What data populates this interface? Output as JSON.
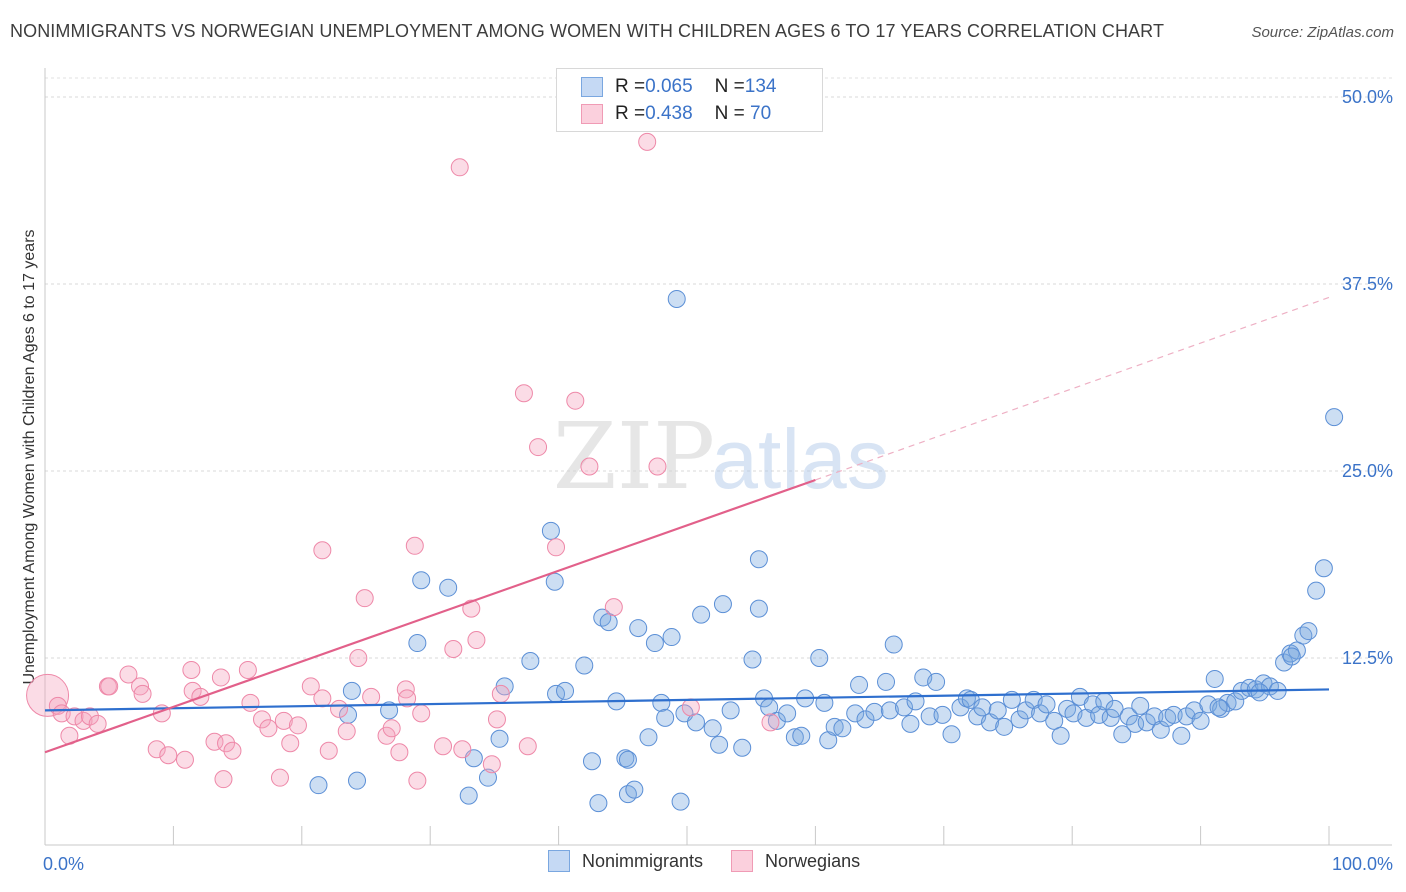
{
  "title": "NONIMMIGRANTS VS NORWEGIAN UNEMPLOYMENT AMONG WOMEN WITH CHILDREN AGES 6 TO 17 YEARS CORRELATION CHART",
  "source": "Source: ZipAtlas.com",
  "watermark": {
    "zip": "ZIP",
    "atlas": "atlas"
  },
  "legend_top": [
    {
      "r_label": "R = ",
      "r_value": "0.065",
      "n_label": "N = ",
      "n_value": "134",
      "color": "#7aa7e0"
    },
    {
      "r_label": "R = ",
      "r_value": "0.438",
      "n_label": "N = ",
      "n_value": " 70",
      "color": "#f09bb5"
    }
  ],
  "legend_bottom": [
    "Nonimmigrants",
    "Norwegians"
  ],
  "chart_data": {
    "type": "scatter",
    "title": "NONIMMIGRANTS VS NORWEGIAN UNEMPLOYMENT AMONG WOMEN WITH CHILDREN AGES 6 TO 17 YEARS CORRELATION CHART",
    "xlabel": "",
    "ylabel": "Unemployment Among Women with Children Ages 6 to 17 years",
    "xlim": [
      0,
      100
    ],
    "ylim": [
      0,
      50
    ],
    "x_tick_labels": [
      "0.0%",
      "100.0%"
    ],
    "y_ticks": [
      12.5,
      25.0,
      37.5,
      50.0
    ],
    "y_tick_labels": [
      "12.5%",
      "25.0%",
      "37.5%",
      "50.0%"
    ],
    "grid": "horizontal dashed",
    "legend_position": "top-center and bottom",
    "series": [
      {
        "name": "Nonimmigrants",
        "color": "#7aa7e0",
        "stroke": "#5b8fd6",
        "trend": {
          "x": [
            0,
            100
          ],
          "y": [
            9.0,
            10.4
          ],
          "color": "#2e6fce"
        },
        "points": [
          [
            21.3,
            4.0
          ],
          [
            23.6,
            8.7
          ],
          [
            24.3,
            4.3
          ],
          [
            23.9,
            10.3
          ],
          [
            26.8,
            9.0
          ],
          [
            29.0,
            13.5
          ],
          [
            29.3,
            17.7
          ],
          [
            31.4,
            17.2
          ],
          [
            33.0,
            3.3
          ],
          [
            33.4,
            5.8
          ],
          [
            34.5,
            4.5
          ],
          [
            35.4,
            7.1
          ],
          [
            35.8,
            10.6
          ],
          [
            37.8,
            12.3
          ],
          [
            39.4,
            21.0
          ],
          [
            39.7,
            17.6
          ],
          [
            39.8,
            10.1
          ],
          [
            40.5,
            10.3
          ],
          [
            42.0,
            12.0
          ],
          [
            42.6,
            5.6
          ],
          [
            43.1,
            2.8
          ],
          [
            43.4,
            15.2
          ],
          [
            43.9,
            14.9
          ],
          [
            44.5,
            9.6
          ],
          [
            45.2,
            5.8
          ],
          [
            45.4,
            5.7
          ],
          [
            45.4,
            3.4
          ],
          [
            45.9,
            3.7
          ],
          [
            46.2,
            14.5
          ],
          [
            47.0,
            7.2
          ],
          [
            47.5,
            13.5
          ],
          [
            48.0,
            9.5
          ],
          [
            48.3,
            8.5
          ],
          [
            48.8,
            13.9
          ],
          [
            49.2,
            36.5
          ],
          [
            49.5,
            2.9
          ],
          [
            49.8,
            8.8
          ],
          [
            50.7,
            8.2
          ],
          [
            51.1,
            15.4
          ],
          [
            52.0,
            7.8
          ],
          [
            52.5,
            6.7
          ],
          [
            52.8,
            16.1
          ],
          [
            53.4,
            9.0
          ],
          [
            54.3,
            6.5
          ],
          [
            55.1,
            12.4
          ],
          [
            55.6,
            15.8
          ],
          [
            55.6,
            19.1
          ],
          [
            56.0,
            9.8
          ],
          [
            56.4,
            9.2
          ],
          [
            57.0,
            8.3
          ],
          [
            57.8,
            8.8
          ],
          [
            58.4,
            7.2
          ],
          [
            58.9,
            7.3
          ],
          [
            59.2,
            9.8
          ],
          [
            60.3,
            12.5
          ],
          [
            60.7,
            9.5
          ],
          [
            61.0,
            7.0
          ],
          [
            61.5,
            7.9
          ],
          [
            62.1,
            7.8
          ],
          [
            63.1,
            8.8
          ],
          [
            63.4,
            10.7
          ],
          [
            63.9,
            8.4
          ],
          [
            64.6,
            8.9
          ],
          [
            65.5,
            10.9
          ],
          [
            65.8,
            9.0
          ],
          [
            66.1,
            13.4
          ],
          [
            66.9,
            9.2
          ],
          [
            67.4,
            8.1
          ],
          [
            67.8,
            9.6
          ],
          [
            68.4,
            11.2
          ],
          [
            68.9,
            8.6
          ],
          [
            69.4,
            10.9
          ],
          [
            69.9,
            8.7
          ],
          [
            70.6,
            7.4
          ],
          [
            71.3,
            9.2
          ],
          [
            71.8,
            9.8
          ],
          [
            72.1,
            9.7
          ],
          [
            72.6,
            8.6
          ],
          [
            73.0,
            9.2
          ],
          [
            73.6,
            8.2
          ],
          [
            74.2,
            9.0
          ],
          [
            74.7,
            7.9
          ],
          [
            75.3,
            9.7
          ],
          [
            75.9,
            8.4
          ],
          [
            76.4,
            9.0
          ],
          [
            77.0,
            9.7
          ],
          [
            77.5,
            8.8
          ],
          [
            78.0,
            9.4
          ],
          [
            78.6,
            8.3
          ],
          [
            79.1,
            7.3
          ],
          [
            79.6,
            9.1
          ],
          [
            80.1,
            8.8
          ],
          [
            80.6,
            9.9
          ],
          [
            81.1,
            8.5
          ],
          [
            81.6,
            9.4
          ],
          [
            82.1,
            8.7
          ],
          [
            82.5,
            9.6
          ],
          [
            83.0,
            8.5
          ],
          [
            83.3,
            9.1
          ],
          [
            83.9,
            7.4
          ],
          [
            84.4,
            8.6
          ],
          [
            84.9,
            8.1
          ],
          [
            85.3,
            9.3
          ],
          [
            85.8,
            8.2
          ],
          [
            86.4,
            8.6
          ],
          [
            86.9,
            7.7
          ],
          [
            87.4,
            8.5
          ],
          [
            87.9,
            8.7
          ],
          [
            88.5,
            7.3
          ],
          [
            88.9,
            8.6
          ],
          [
            89.5,
            9.0
          ],
          [
            90.0,
            8.3
          ],
          [
            90.6,
            9.4
          ],
          [
            91.1,
            11.1
          ],
          [
            91.6,
            9.1
          ],
          [
            92.1,
            9.5
          ],
          [
            92.7,
            9.6
          ],
          [
            93.2,
            10.3
          ],
          [
            93.8,
            10.5
          ],
          [
            94.3,
            10.4
          ],
          [
            94.9,
            10.8
          ],
          [
            95.4,
            10.6
          ],
          [
            96.0,
            10.3
          ],
          [
            96.5,
            12.2
          ],
          [
            97.0,
            12.8
          ],
          [
            97.5,
            13.0
          ],
          [
            98.0,
            14.0
          ],
          [
            98.4,
            14.3
          ],
          [
            99.0,
            17.0
          ],
          [
            99.6,
            18.5
          ],
          [
            100.4,
            28.6
          ],
          [
            97.1,
            12.6
          ],
          [
            94.6,
            10.2
          ],
          [
            91.4,
            9.2
          ]
        ]
      },
      {
        "name": "Norwegians",
        "color": "#f4a3bd",
        "stroke": "#ee88a8",
        "trend": {
          "x": [
            0,
            60
          ],
          "y": [
            6.2,
            24.4
          ],
          "color": "#e2608a"
        },
        "trend_dashed": {
          "x": [
            60,
            100
          ],
          "y": [
            24.4,
            36.6
          ]
        },
        "points": [
          [
            0.2,
            10.0
          ],
          [
            1.0,
            9.3
          ],
          [
            1.3,
            8.8
          ],
          [
            1.9,
            7.3
          ],
          [
            2.3,
            8.6
          ],
          [
            3.0,
            8.3
          ],
          [
            3.5,
            8.6
          ],
          [
            4.1,
            8.1
          ],
          [
            4.9,
            10.6
          ],
          [
            5.0,
            10.6
          ],
          [
            6.5,
            11.4
          ],
          [
            7.4,
            10.6
          ],
          [
            7.6,
            10.1
          ],
          [
            8.7,
            6.4
          ],
          [
            9.1,
            8.8
          ],
          [
            9.6,
            6.0
          ],
          [
            10.9,
            5.7
          ],
          [
            11.4,
            11.7
          ],
          [
            11.5,
            10.3
          ],
          [
            12.1,
            9.9
          ],
          [
            13.2,
            6.9
          ],
          [
            13.7,
            11.2
          ],
          [
            13.9,
            4.4
          ],
          [
            14.1,
            6.8
          ],
          [
            14.6,
            6.3
          ],
          [
            15.8,
            11.7
          ],
          [
            16.0,
            9.5
          ],
          [
            16.9,
            8.4
          ],
          [
            17.4,
            7.8
          ],
          [
            18.3,
            4.5
          ],
          [
            18.6,
            8.3
          ],
          [
            19.1,
            6.8
          ],
          [
            19.7,
            8.0
          ],
          [
            20.7,
            10.6
          ],
          [
            21.6,
            9.8
          ],
          [
            21.6,
            19.7
          ],
          [
            22.1,
            6.3
          ],
          [
            22.9,
            9.1
          ],
          [
            23.5,
            7.6
          ],
          [
            24.4,
            12.5
          ],
          [
            24.9,
            16.5
          ],
          [
            25.4,
            9.9
          ],
          [
            26.6,
            7.3
          ],
          [
            27.0,
            7.8
          ],
          [
            27.6,
            6.2
          ],
          [
            28.1,
            10.4
          ],
          [
            28.2,
            9.8
          ],
          [
            28.8,
            20.0
          ],
          [
            29.0,
            4.3
          ],
          [
            29.3,
            8.8
          ],
          [
            31.0,
            6.6
          ],
          [
            31.8,
            13.1
          ],
          [
            32.3,
            45.3
          ],
          [
            32.5,
            6.4
          ],
          [
            33.2,
            15.8
          ],
          [
            33.6,
            13.7
          ],
          [
            34.8,
            5.4
          ],
          [
            35.2,
            8.4
          ],
          [
            35.5,
            10.1
          ],
          [
            37.3,
            30.2
          ],
          [
            37.6,
            6.6
          ],
          [
            38.4,
            26.6
          ],
          [
            39.8,
            19.9
          ],
          [
            41.3,
            29.7
          ],
          [
            42.4,
            25.3
          ],
          [
            44.3,
            15.9
          ],
          [
            46.9,
            47.0
          ],
          [
            47.7,
            25.3
          ],
          [
            50.3,
            9.2
          ],
          [
            56.5,
            8.2
          ]
        ]
      }
    ]
  }
}
